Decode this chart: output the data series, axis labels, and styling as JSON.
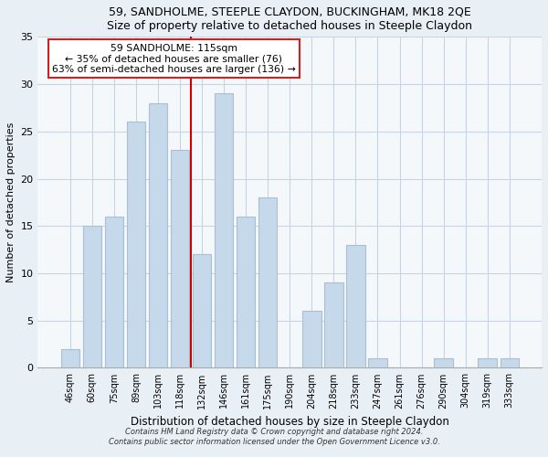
{
  "title": "59, SANDHOLME, STEEPLE CLAYDON, BUCKINGHAM, MK18 2QE",
  "subtitle": "Size of property relative to detached houses in Steeple Claydon",
  "xlabel": "Distribution of detached houses by size in Steeple Claydon",
  "ylabel": "Number of detached properties",
  "bar_labels": [
    "46sqm",
    "60sqm",
    "75sqm",
    "89sqm",
    "103sqm",
    "118sqm",
    "132sqm",
    "146sqm",
    "161sqm",
    "175sqm",
    "190sqm",
    "204sqm",
    "218sqm",
    "233sqm",
    "247sqm",
    "261sqm",
    "276sqm",
    "290sqm",
    "304sqm",
    "319sqm",
    "333sqm"
  ],
  "bar_values": [
    2,
    15,
    16,
    26,
    28,
    23,
    12,
    29,
    16,
    18,
    0,
    6,
    9,
    13,
    1,
    0,
    0,
    1,
    0,
    1,
    1
  ],
  "bar_color": "#c5d9ea",
  "bar_edge_color": "#aabfcf",
  "ylim": [
    0,
    35
  ],
  "yticks": [
    0,
    5,
    10,
    15,
    20,
    25,
    30,
    35
  ],
  "vline_x_index": 5,
  "vline_color": "#cc0000",
  "annotation_title": "59 SANDHOLME: 115sqm",
  "annotation_line1": "← 35% of detached houses are smaller (76)",
  "annotation_line2": "63% of semi-detached houses are larger (136) →",
  "footer1": "Contains HM Land Registry data © Crown copyright and database right 2024.",
  "footer2": "Contains public sector information licensed under the Open Government Licence v3.0.",
  "background_color": "#e8eff5",
  "plot_bg_color": "#f5f8fb",
  "grid_color": "#c5d5e5"
}
